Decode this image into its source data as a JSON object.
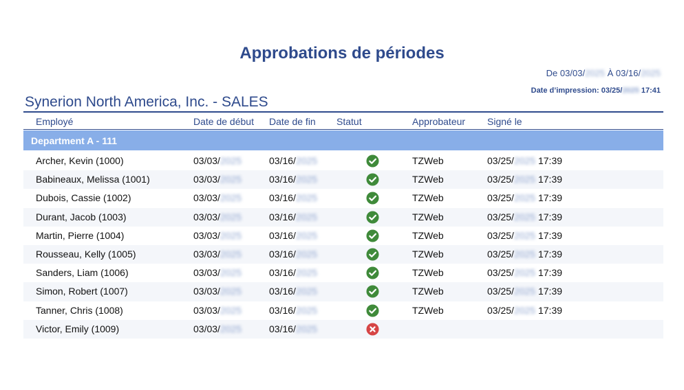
{
  "report": {
    "title": "Approbations de périodes",
    "date_range": {
      "prefix": "De",
      "start_visible": "03/03/",
      "start_year": "2025",
      "separator": "À",
      "end_visible": "03/16/",
      "end_year": "2025"
    },
    "print_date": {
      "label": "Date d’impression:",
      "date_visible": "03/25/",
      "date_year": "2025",
      "time": "17:41"
    },
    "company": "Synerion North America, Inc. - SALES"
  },
  "table": {
    "columns": {
      "employee": "Employé",
      "start": "Date de début",
      "end": "Date de fin",
      "status": "Statut",
      "approver": "Approbateur",
      "signed": "Signé le"
    },
    "department": "Department A - 111",
    "rows": [
      {
        "employee": "Archer, Kevin (1000)",
        "start": "03/03/",
        "start_year": "2025",
        "end": "03/16/",
        "end_year": "2025",
        "status": "approved",
        "approver": "TZWeb",
        "signed": "03/25/",
        "signed_year": "2025",
        "signed_time": "17:39"
      },
      {
        "employee": "Babineaux, Melissa (1001)",
        "start": "03/03/",
        "start_year": "2025",
        "end": "03/16/",
        "end_year": "2025",
        "status": "approved",
        "approver": "TZWeb",
        "signed": "03/25/",
        "signed_year": "2025",
        "signed_time": "17:39"
      },
      {
        "employee": "Dubois, Cassie (1002)",
        "start": "03/03/",
        "start_year": "2025",
        "end": "03/16/",
        "end_year": "2025",
        "status": "approved",
        "approver": "TZWeb",
        "signed": "03/25/",
        "signed_year": "2025",
        "signed_time": "17:39"
      },
      {
        "employee": "Durant, Jacob (1003)",
        "start": "03/03/",
        "start_year": "2025",
        "end": "03/16/",
        "end_year": "2025",
        "status": "approved",
        "approver": "TZWeb",
        "signed": "03/25/",
        "signed_year": "2025",
        "signed_time": "17:39"
      },
      {
        "employee": "Martin, Pierre (1004)",
        "start": "03/03/",
        "start_year": "2025",
        "end": "03/16/",
        "end_year": "2025",
        "status": "approved",
        "approver": "TZWeb",
        "signed": "03/25/",
        "signed_year": "2025",
        "signed_time": "17:39"
      },
      {
        "employee": "Rousseau, Kelly (1005)",
        "start": "03/03/",
        "start_year": "2025",
        "end": "03/16/",
        "end_year": "2025",
        "status": "approved",
        "approver": "TZWeb",
        "signed": "03/25/",
        "signed_year": "2025",
        "signed_time": "17:39"
      },
      {
        "employee": "Sanders, Liam (1006)",
        "start": "03/03/",
        "start_year": "2025",
        "end": "03/16/",
        "end_year": "2025",
        "status": "approved",
        "approver": "TZWeb",
        "signed": "03/25/",
        "signed_year": "2025",
        "signed_time": "17:39"
      },
      {
        "employee": "Simon, Robert (1007)",
        "start": "03/03/",
        "start_year": "2025",
        "end": "03/16/",
        "end_year": "2025",
        "status": "approved",
        "approver": "TZWeb",
        "signed": "03/25/",
        "signed_year": "2025",
        "signed_time": "17:39"
      },
      {
        "employee": "Tanner, Chris (1008)",
        "start": "03/03/",
        "start_year": "2025",
        "end": "03/16/",
        "end_year": "2025",
        "status": "approved",
        "approver": "TZWeb",
        "signed": "03/25/",
        "signed_year": "2025",
        "signed_time": "17:39"
      },
      {
        "employee": "Victor, Emily (1009)",
        "start": "03/03/",
        "start_year": "2025",
        "end": "03/16/",
        "end_year": "2025",
        "status": "rejected",
        "approver": "",
        "signed": "",
        "signed_year": "",
        "signed_time": ""
      }
    ]
  },
  "icons": {
    "approved": "check-circle-icon",
    "rejected": "x-circle-icon"
  },
  "colors": {
    "accent": "#2e4a8c",
    "department_band": "#88aee8",
    "approved": "#3f8a3a",
    "rejected": "#d64545"
  }
}
